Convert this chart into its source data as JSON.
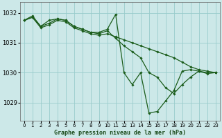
{
  "title": "Graphe pression niveau de la mer (hPa)",
  "background_color": "#cce8e8",
  "grid_color": "#99cccc",
  "line_color": "#1a5c1a",
  "xlim": [
    -0.5,
    23.5
  ],
  "ylim": [
    1028.4,
    1032.35
  ],
  "yticks": [
    1029,
    1030,
    1031,
    1032
  ],
  "xticks": [
    0,
    1,
    2,
    3,
    4,
    5,
    6,
    7,
    8,
    9,
    10,
    11,
    12,
    13,
    14,
    15,
    16,
    17,
    18,
    19,
    20,
    21,
    22,
    23
  ],
  "series": [
    {
      "x": [
        0,
        1,
        2,
        3,
        4,
        5,
        6,
        7,
        8,
        9,
        10,
        11,
        12,
        13,
        14,
        15,
        16,
        17,
        18,
        19,
        20,
        21,
        22,
        23
      ],
      "y": [
        1031.75,
        1031.85,
        1031.55,
        1031.75,
        1031.8,
        1031.75,
        1031.55,
        1031.45,
        1031.35,
        1031.35,
        1031.45,
        1031.95,
        1030.0,
        1029.6,
        1030.0,
        1028.65,
        1028.7,
        1029.05,
        1029.4,
        1030.05,
        1030.1,
        1030.05,
        1029.97,
        1030.0
      ]
    },
    {
      "x": [
        0,
        1,
        2,
        3,
        4,
        5,
        6,
        7,
        8,
        9,
        10,
        11,
        12,
        13,
        14,
        15,
        16,
        17,
        18,
        19,
        20,
        21,
        22,
        23
      ],
      "y": [
        1031.75,
        1031.85,
        1031.5,
        1031.6,
        1031.75,
        1031.7,
        1031.5,
        1031.4,
        1031.3,
        1031.25,
        1031.3,
        1031.2,
        1031.1,
        1031.0,
        1030.9,
        1030.8,
        1030.7,
        1030.6,
        1030.5,
        1030.35,
        1030.2,
        1030.1,
        1030.05,
        1030.0
      ]
    },
    {
      "x": [
        0,
        1,
        2,
        3,
        4,
        5,
        6,
        7,
        8,
        9,
        10,
        11,
        12,
        13,
        14,
        15,
        16,
        17,
        18,
        19,
        20,
        21,
        22,
        23
      ],
      "y": [
        1031.75,
        1031.9,
        1031.55,
        1031.65,
        1031.8,
        1031.75,
        1031.55,
        1031.45,
        1031.35,
        1031.3,
        1031.4,
        1031.15,
        1030.9,
        1030.7,
        1030.5,
        1030.0,
        1029.85,
        1029.5,
        1029.3,
        1029.6,
        1029.85,
        1030.05,
        1030.0,
        1030.0
      ]
    }
  ]
}
